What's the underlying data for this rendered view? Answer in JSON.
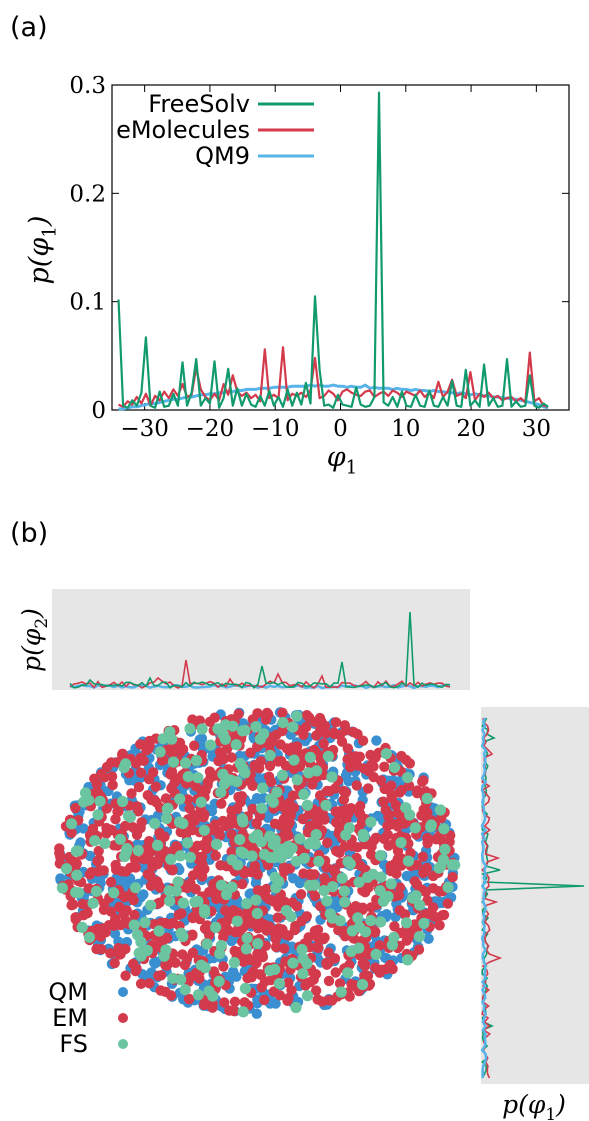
{
  "panels": {
    "a": "(a)",
    "b": "(b)"
  },
  "chart_data": [
    {
      "type": "line",
      "panel": "(a)",
      "xlabel": "φ1",
      "ylabel": "p(φ1)",
      "xlim": [
        -35,
        35
      ],
      "ylim": [
        0,
        0.3
      ],
      "xticks": [
        -30,
        -20,
        -10,
        0,
        10,
        20,
        30
      ],
      "yticks": [
        0,
        0.1,
        0.2,
        0.3
      ],
      "xtick_labels": [
        "−30",
        "−20",
        "−10",
        "0",
        "10",
        "20",
        "30"
      ],
      "ytick_labels": [
        "0",
        "0.1",
        "0.2",
        "0.3"
      ],
      "legend_position": "top-left",
      "series": [
        {
          "name": "FreeSolv",
          "color": "#119a6e",
          "x": [
            -34,
            -33.3,
            -32.6,
            -31.9,
            -31.2,
            -30.5,
            -29.8,
            -29.1,
            -28.4,
            -27.7,
            -27,
            -26.3,
            -25.6,
            -24.9,
            -24.2,
            -23.5,
            -22.8,
            -22.1,
            -21.4,
            -20.7,
            -20,
            -19.3,
            -18.6,
            -17.9,
            -17.2,
            -16.5,
            -15.8,
            -15.1,
            -14.4,
            -13.7,
            -13,
            -12.3,
            -11.6,
            -10.9,
            -10.2,
            -9.5,
            -8.8,
            -8.1,
            -7.4,
            -6.7,
            -6,
            -5.3,
            -4.6,
            -3.9,
            -3.2,
            -2.5,
            -1.8,
            -1.1,
            -0.4,
            0.3,
            1,
            1.7,
            2.4,
            3.1,
            3.8,
            4.5,
            5.2,
            5.9,
            6.6,
            7.3,
            8,
            8.7,
            9.4,
            10.1,
            10.8,
            11.5,
            12.2,
            12.9,
            13.6,
            14.3,
            15,
            15.7,
            16.4,
            17.1,
            17.8,
            18.5,
            19.2,
            19.9,
            20.6,
            21.3,
            22,
            22.7,
            23.4,
            24.1,
            24.8,
            25.5,
            26.2,
            26.9,
            27.6,
            28.3,
            29,
            29.7,
            30.4,
            31.1,
            31.8
          ],
          "y": [
            0.102,
            0.004,
            0.002,
            0.009,
            0.004,
            0.016,
            0.067,
            0.004,
            0.002,
            0.017,
            0.003,
            0.004,
            0.015,
            0.004,
            0.044,
            0.004,
            0.016,
            0.047,
            0.004,
            0.011,
            0.006,
            0.045,
            0.002,
            0.011,
            0.038,
            0.004,
            0.02,
            0.004,
            0.015,
            0.005,
            0.003,
            0.013,
            0.004,
            0.018,
            0.004,
            0.012,
            0.003,
            0.019,
            0.004,
            0.016,
            0.005,
            0.025,
            0.006,
            0.105,
            0.037,
            0.004,
            0.005,
            0.002,
            0.014,
            0.005,
            0.004,
            0.003,
            0.021,
            0.005,
            0.003,
            0.004,
            0.012,
            0.293,
            0.007,
            0.004,
            0.012,
            0.003,
            0.017,
            0.004,
            0.003,
            0.014,
            0.004,
            0.003,
            0.018,
            0.004,
            0.003,
            0.012,
            0.004,
            0.027,
            0.004,
            0.003,
            0.037,
            0.004,
            0.009,
            0.003,
            0.042,
            0.004,
            0.011,
            0.003,
            0.004,
            0.047,
            0.003,
            0.008,
            0.003,
            0.004,
            0.032,
            0.004,
            0.002,
            0.006,
            0.003
          ]
        },
        {
          "name": "eMolecules",
          "color": "#d33a4c",
          "x": [
            -34,
            -33.3,
            -32.6,
            -31.9,
            -31.2,
            -30.5,
            -29.8,
            -29.1,
            -28.4,
            -27.7,
            -27,
            -26.3,
            -25.6,
            -24.9,
            -24.2,
            -23.5,
            -22.8,
            -22.1,
            -21.4,
            -20.7,
            -20,
            -19.3,
            -18.6,
            -17.9,
            -17.2,
            -16.5,
            -15.8,
            -15.1,
            -14.4,
            -13.7,
            -13,
            -12.3,
            -11.6,
            -10.9,
            -10.2,
            -9.5,
            -8.8,
            -8.1,
            -7.4,
            -6.7,
            -6,
            -5.3,
            -4.6,
            -3.9,
            -3.2,
            -2.5,
            -1.8,
            -1.1,
            -0.4,
            0.3,
            1,
            1.7,
            2.4,
            3.1,
            3.8,
            4.5,
            5.2,
            5.9,
            6.6,
            7.3,
            8,
            8.7,
            9.4,
            10.1,
            10.8,
            11.5,
            12.2,
            12.9,
            13.6,
            14.3,
            15,
            15.7,
            16.4,
            17.1,
            17.8,
            18.5,
            19.2,
            19.9,
            20.6,
            21.3,
            22,
            22.7,
            23.4,
            24.1,
            24.8,
            25.5,
            26.2,
            26.9,
            27.6,
            28.3,
            29,
            29.7,
            30.4,
            31.1,
            31.8
          ],
          "y": [
            0.005,
            0.003,
            0.008,
            0.005,
            0.012,
            0.006,
            0.015,
            0.004,
            0.013,
            0.009,
            0.017,
            0.011,
            0.019,
            0.013,
            0.024,
            0.012,
            0.014,
            0.039,
            0.019,
            0.012,
            0.009,
            0.015,
            0.009,
            0.024,
            0.014,
            0.032,
            0.017,
            0.013,
            0.016,
            0.011,
            0.014,
            0.008,
            0.056,
            0.011,
            0.014,
            0.011,
            0.058,
            0.009,
            0.015,
            0.013,
            0.016,
            0.012,
            0.018,
            0.048,
            0.011,
            0.013,
            0.018,
            0.015,
            0.009,
            0.017,
            0.019,
            0.016,
            0.014,
            0.013,
            0.017,
            0.018,
            0.012,
            0.015,
            0.017,
            0.013,
            0.018,
            0.016,
            0.012,
            0.017,
            0.015,
            0.013,
            0.018,
            0.012,
            0.016,
            0.011,
            0.026,
            0.012,
            0.017,
            0.028,
            0.013,
            0.015,
            0.011,
            0.035,
            0.009,
            0.015,
            0.012,
            0.016,
            0.011,
            0.013,
            0.009,
            0.011,
            0.012,
            0.008,
            0.011,
            0.007,
            0.053,
            0.008,
            0.011,
            0.004,
            0.003
          ]
        },
        {
          "name": "QM9",
          "color": "#56b4e9",
          "x": [
            -34,
            -33.3,
            -32.6,
            -31.9,
            -31.2,
            -30.5,
            -29.8,
            -29.1,
            -28.4,
            -27.7,
            -27,
            -26.3,
            -25.6,
            -24.9,
            -24.2,
            -23.5,
            -22.8,
            -22.1,
            -21.4,
            -20.7,
            -20,
            -19.3,
            -18.6,
            -17.9,
            -17.2,
            -16.5,
            -15.8,
            -15.1,
            -14.4,
            -13.7,
            -13,
            -12.3,
            -11.6,
            -10.9,
            -10.2,
            -9.5,
            -8.8,
            -8.1,
            -7.4,
            -6.7,
            -6,
            -5.3,
            -4.6,
            -3.9,
            -3.2,
            -2.5,
            -1.8,
            -1.1,
            -0.4,
            0.3,
            1,
            1.7,
            2.4,
            3.1,
            3.8,
            4.5,
            5.2,
            5.9,
            6.6,
            7.3,
            8,
            8.7,
            9.4,
            10.1,
            10.8,
            11.5,
            12.2,
            12.9,
            13.6,
            14.3,
            15,
            15.7,
            16.4,
            17.1,
            17.8,
            18.5,
            19.2,
            19.9,
            20.6,
            21.3,
            22,
            22.7,
            23.4,
            24.1,
            24.8,
            25.5,
            26.2,
            26.9,
            27.6,
            28.3,
            29,
            29.7,
            30.4,
            31.1,
            31.8
          ],
          "y": [
            0.001,
            0.001,
            0.002,
            0.003,
            0.003,
            0.004,
            0.005,
            0.006,
            0.006,
            0.007,
            0.008,
            0.009,
            0.01,
            0.01,
            0.011,
            0.012,
            0.012,
            0.013,
            0.014,
            0.014,
            0.015,
            0.015,
            0.016,
            0.016,
            0.017,
            0.017,
            0.018,
            0.018,
            0.019,
            0.019,
            0.019,
            0.02,
            0.02,
            0.02,
            0.021,
            0.021,
            0.021,
            0.021,
            0.022,
            0.022,
            0.022,
            0.022,
            0.023,
            0.022,
            0.023,
            0.022,
            0.022,
            0.023,
            0.022,
            0.022,
            0.021,
            0.022,
            0.021,
            0.021,
            0.023,
            0.02,
            0.021,
            0.02,
            0.02,
            0.02,
            0.019,
            0.02,
            0.019,
            0.019,
            0.018,
            0.019,
            0.018,
            0.018,
            0.017,
            0.018,
            0.017,
            0.017,
            0.016,
            0.016,
            0.015,
            0.016,
            0.015,
            0.014,
            0.015,
            0.014,
            0.013,
            0.013,
            0.012,
            0.012,
            0.011,
            0.011,
            0.01,
            0.01,
            0.009,
            0.008,
            0.007,
            0.006,
            0.005,
            0.003,
            0.002
          ]
        }
      ]
    },
    {
      "type": "scatter",
      "panel": "(b)",
      "top_marginal_label": "p(φ2)",
      "right_marginal_label": "p(φ1)",
      "legend_position": "bottom-left",
      "series": [
        {
          "name": "QM",
          "color": "#3a8fd0"
        },
        {
          "name": "EM",
          "color": "#d33a4c"
        },
        {
          "name": "FS",
          "color": "#6bc5a0"
        }
      ]
    }
  ]
}
